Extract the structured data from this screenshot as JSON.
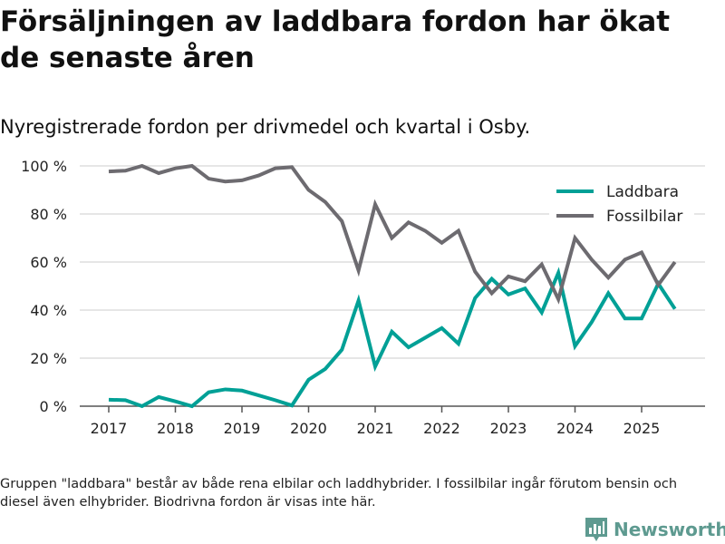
{
  "title": "Försäljningen av laddbara fordon har ökat de senaste åren",
  "subtitle": "Nyregistrerade fordon per drivmedel och kvartal i Osby.",
  "footnote": "Gruppen \"laddbara\" består av både rena elbilar och laddhybrider. I fossilbilar ingår förutom bensin och diesel även elhybrider. Biodrivna fordon är visas inte här.",
  "logo": {
    "text": "Newsworthy"
  },
  "chart_data": {
    "type": "line",
    "title": "Försäljningen av laddbara fordon har ökat de senaste åren",
    "xlabel": "",
    "ylabel": "",
    "x_start": 2017,
    "x_step": 0.25,
    "xlim": [
      2016.6,
      2025.95
    ],
    "ylim": [
      0,
      100
    ],
    "x_ticks": [
      "2017",
      "2018",
      "2019",
      "2020",
      "2021",
      "2022",
      "2023",
      "2024",
      "2025"
    ],
    "y_ticks": [
      "0 %",
      "20 %",
      "40 %",
      "60 %",
      "80 %",
      "100 %"
    ],
    "grid": true,
    "legend_position": "top-right",
    "series": [
      {
        "name": "Laddbara",
        "color": "#00a096",
        "values": [
          2.7,
          2.5,
          0,
          3.8,
          2,
          0,
          5.8,
          7,
          6.5,
          4.5,
          2.5,
          0.3,
          11,
          15.5,
          23.5,
          44,
          16.5,
          31,
          24.5,
          28.5,
          32.5,
          26,
          45,
          53,
          46.5,
          49,
          39,
          55.5,
          25,
          35,
          47,
          36.5,
          36.5,
          51,
          40.5
        ]
      },
      {
        "name": "Fossilbilar",
        "color": "#6d6b70",
        "values": [
          97.7,
          98,
          100,
          97,
          99,
          100,
          94.7,
          93.5,
          94,
          96,
          99,
          99.5,
          90,
          85,
          77,
          56.5,
          84,
          70,
          76.5,
          73,
          68,
          73,
          56,
          47,
          54,
          52,
          59,
          44.5,
          70,
          61,
          53.5,
          61,
          64,
          50.5,
          60
        ]
      }
    ]
  }
}
